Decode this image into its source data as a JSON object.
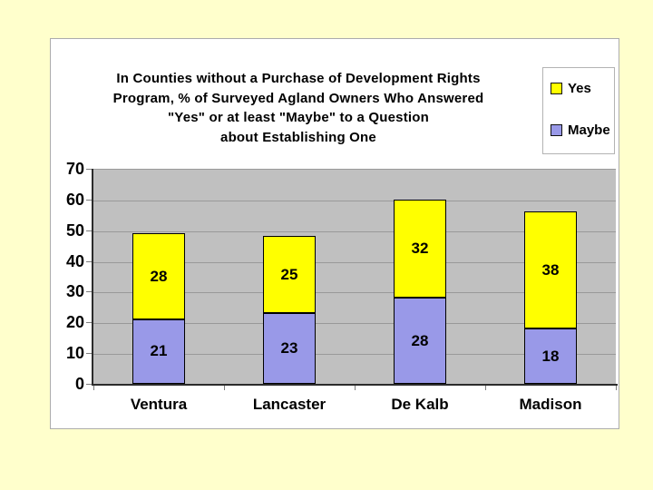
{
  "slide": {
    "background_color": "#FFFFCC"
  },
  "chart_data": {
    "type": "bar",
    "stacked": true,
    "title": "In Counties without a Purchase of Development Rights Program, % of Surveyed Agland Owners Who Answered \"Yes\" or at least \"Maybe\" to a Question about Establishing One",
    "title_lines": [
      "In Counties without a Purchase of Development Rights",
      "Program, % of Surveyed Agland Owners Who Answered",
      "\"Yes\" or at least \"Maybe\" to a Question",
      "about Establishing One"
    ],
    "categories": [
      "Ventura",
      "Lancaster",
      "De Kalb",
      "Madison"
    ],
    "series": [
      {
        "name": "Maybe",
        "color": "#9999E8",
        "values": [
          21,
          23,
          28,
          18
        ]
      },
      {
        "name": "Yes",
        "color": "#FFFF00",
        "values": [
          28,
          25,
          32,
          38
        ]
      }
    ],
    "legend": {
      "position": "top-right",
      "entries": [
        {
          "label": "Yes",
          "color": "#FFFF00"
        },
        {
          "label": "Maybe",
          "color": "#9999E8"
        }
      ]
    },
    "y_axis": {
      "min": 0,
      "max": 70,
      "tick_interval": 10,
      "tick_labels": [
        "0",
        "10",
        "20",
        "30",
        "40",
        "50",
        "60",
        "70"
      ]
    },
    "xlabel": "",
    "ylabel": "",
    "grid": true,
    "data_labels": true,
    "plot_background": "#C0C0C0",
    "gridline_color": "#999999",
    "axis_color": "#2B2B2B",
    "bar_border_color": "#000000",
    "text_color": "#000000"
  }
}
